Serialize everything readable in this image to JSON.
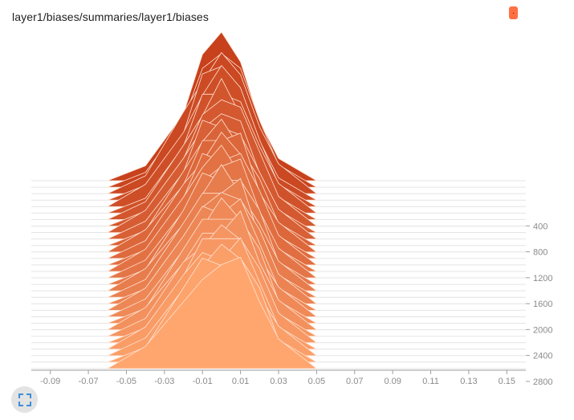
{
  "card": {
    "title": "layer1/biases/summaries/layer1/biases",
    "menu_label": "."
  },
  "colors": {
    "back_fill": "#c6411c",
    "front_fill": "#ffa66f",
    "ridge_line": "#ffe3d3",
    "axis": "#9e9e9e",
    "expand_icon": "#3f8ed8"
  },
  "icons": {
    "expand": "fullscreen-icon"
  },
  "chart_data": {
    "type": "area",
    "title": "layer1/biases/summaries/layer1/biases",
    "xlabel": "",
    "ylabel": "",
    "xlim": [
      -0.1,
      0.16
    ],
    "ylim": [
      3000,
      0
    ],
    "x_ticks": [
      -0.09,
      -0.07,
      -0.05,
      -0.03,
      -0.01,
      0.01,
      0.03,
      0.05,
      0.07,
      0.09,
      0.11,
      0.13,
      0.15
    ],
    "x_tick_labels": [
      "-0.09",
      "-0.07",
      "-0.05",
      "-0.03",
      "-0.01",
      "0.01",
      "0.03",
      "0.05",
      "0.07",
      "0.09",
      "0.11",
      "0.13",
      "0.15"
    ],
    "y_ticks": [
      400,
      800,
      1200,
      1600,
      2000,
      2400,
      2800
    ],
    "y_tick_labels": [
      "400",
      "800",
      "1200",
      "1600",
      "2000",
      "2400",
      "2800"
    ],
    "step_axis": "y",
    "grid": false,
    "legend": "none",
    "series": [
      {
        "step": 0,
        "x": [
          -0.06,
          -0.04,
          -0.02,
          -0.01,
          0.0,
          0.01,
          0.02,
          0.03,
          0.05
        ],
        "y": [
          0.0,
          0.1,
          0.45,
          0.85,
          1.0,
          0.8,
          0.4,
          0.15,
          0.0
        ]
      },
      {
        "step": 100,
        "x": [
          -0.06,
          -0.04,
          -0.02,
          -0.01,
          0.0,
          0.01,
          0.02,
          0.03,
          0.05
        ],
        "y": [
          0.0,
          0.1,
          0.45,
          0.8,
          0.9,
          0.8,
          0.45,
          0.15,
          0.0
        ]
      },
      {
        "step": 200,
        "x": [
          -0.06,
          -0.04,
          -0.02,
          -0.01,
          0.0,
          0.01,
          0.02,
          0.03,
          0.05
        ],
        "y": [
          0.0,
          0.12,
          0.55,
          0.75,
          0.95,
          0.8,
          0.45,
          0.2,
          0.0
        ]
      },
      {
        "step": 300,
        "x": [
          -0.06,
          -0.04,
          -0.02,
          -0.01,
          0.0,
          0.01,
          0.02,
          0.03,
          0.05
        ],
        "y": [
          0.0,
          0.1,
          0.45,
          0.85,
          0.9,
          0.65,
          0.4,
          0.15,
          0.0
        ]
      },
      {
        "step": 400,
        "x": [
          -0.06,
          -0.04,
          -0.02,
          -0.01,
          0.0,
          0.01,
          0.02,
          0.03,
          0.05
        ],
        "y": [
          0.0,
          0.15,
          0.5,
          0.75,
          0.95,
          0.8,
          0.45,
          0.15,
          0.0
        ]
      },
      {
        "step": 500,
        "x": [
          -0.06,
          -0.04,
          -0.02,
          -0.01,
          0.0,
          0.01,
          0.02,
          0.03,
          0.05
        ],
        "y": [
          0.0,
          0.1,
          0.45,
          0.8,
          0.8,
          0.75,
          0.45,
          0.2,
          0.0
        ]
      },
      {
        "step": 600,
        "x": [
          -0.06,
          -0.04,
          -0.02,
          -0.01,
          0.0,
          0.01,
          0.02,
          0.03,
          0.05
        ],
        "y": [
          0.0,
          0.12,
          0.5,
          0.7,
          0.95,
          0.7,
          0.4,
          0.15,
          0.0
        ]
      },
      {
        "step": 700,
        "x": [
          -0.06,
          -0.04,
          -0.02,
          -0.01,
          0.0,
          0.01,
          0.02,
          0.03,
          0.05
        ],
        "y": [
          0.0,
          0.1,
          0.45,
          0.75,
          0.85,
          0.8,
          0.5,
          0.2,
          0.0
        ]
      },
      {
        "step": 800,
        "x": [
          -0.06,
          -0.04,
          -0.02,
          -0.01,
          0.0,
          0.01,
          0.02,
          0.03,
          0.05
        ],
        "y": [
          0.0,
          0.15,
          0.5,
          0.7,
          0.8,
          0.75,
          0.4,
          0.15,
          0.0
        ]
      },
      {
        "step": 900,
        "x": [
          -0.06,
          -0.04,
          -0.02,
          -0.01,
          0.0,
          0.01,
          0.02,
          0.03,
          0.05
        ],
        "y": [
          0.0,
          0.12,
          0.45,
          0.8,
          0.75,
          0.7,
          0.45,
          0.2,
          0.0
        ]
      },
      {
        "step": 1000,
        "x": [
          -0.06,
          -0.04,
          -0.02,
          -0.01,
          0.0,
          0.01,
          0.02,
          0.03,
          0.05
        ],
        "y": [
          0.0,
          0.1,
          0.5,
          0.7,
          0.85,
          0.65,
          0.45,
          0.15,
          0.0
        ]
      },
      {
        "step": 1100,
        "x": [
          -0.06,
          -0.04,
          -0.02,
          -0.01,
          0.0,
          0.01,
          0.02,
          0.03,
          0.05
        ],
        "y": [
          0.0,
          0.15,
          0.45,
          0.75,
          0.75,
          0.8,
          0.4,
          0.2,
          0.0
        ]
      },
      {
        "step": 1200,
        "x": [
          -0.06,
          -0.04,
          -0.02,
          -0.01,
          0.0,
          0.01,
          0.02,
          0.03,
          0.05
        ],
        "y": [
          0.0,
          0.12,
          0.5,
          0.65,
          0.85,
          0.7,
          0.45,
          0.15,
          0.0
        ]
      },
      {
        "step": 1300,
        "x": [
          -0.06,
          -0.04,
          -0.02,
          -0.01,
          0.0,
          0.01,
          0.02,
          0.03,
          0.05
        ],
        "y": [
          0.0,
          0.1,
          0.45,
          0.75,
          0.7,
          0.75,
          0.5,
          0.2,
          0.0
        ]
      },
      {
        "step": 1400,
        "x": [
          -0.06,
          -0.04,
          -0.02,
          -0.01,
          0.0,
          0.01,
          0.02,
          0.03,
          0.05
        ],
        "y": [
          0.0,
          0.15,
          0.5,
          0.7,
          0.85,
          0.65,
          0.4,
          0.15,
          0.0
        ]
      },
      {
        "step": 1500,
        "x": [
          -0.06,
          -0.04,
          -0.02,
          -0.01,
          0.0,
          0.01,
          0.02,
          0.03,
          0.05
        ],
        "y": [
          0.0,
          0.12,
          0.45,
          0.65,
          0.75,
          0.8,
          0.45,
          0.2,
          0.0
        ]
      },
      {
        "step": 1600,
        "x": [
          -0.06,
          -0.04,
          -0.02,
          -0.01,
          0.0,
          0.01,
          0.02,
          0.03,
          0.05
        ],
        "y": [
          0.0,
          0.1,
          0.5,
          0.75,
          0.7,
          0.7,
          0.5,
          0.15,
          0.0
        ]
      },
      {
        "step": 1700,
        "x": [
          -0.06,
          -0.04,
          -0.02,
          -0.01,
          0.0,
          0.01,
          0.02,
          0.03,
          0.05
        ],
        "y": [
          0.0,
          0.15,
          0.45,
          0.65,
          0.85,
          0.65,
          0.45,
          0.2,
          0.0
        ]
      },
      {
        "step": 1800,
        "x": [
          -0.06,
          -0.04,
          -0.02,
          -0.01,
          0.0,
          0.01,
          0.02,
          0.03,
          0.05
        ],
        "y": [
          0.0,
          0.12,
          0.5,
          0.7,
          0.7,
          0.8,
          0.4,
          0.15,
          0.0
        ]
      },
      {
        "step": 1900,
        "x": [
          -0.06,
          -0.04,
          -0.02,
          -0.01,
          0.0,
          0.01,
          0.02,
          0.03,
          0.05
        ],
        "y": [
          0.0,
          0.1,
          0.45,
          0.65,
          0.75,
          0.7,
          0.5,
          0.2,
          0.0
        ]
      },
      {
        "step": 2000,
        "x": [
          -0.06,
          -0.04,
          -0.02,
          -0.01,
          0.0,
          0.01,
          0.02,
          0.03,
          0.05
        ],
        "y": [
          0.0,
          0.15,
          0.5,
          0.7,
          0.65,
          0.75,
          0.45,
          0.15,
          0.0
        ]
      },
      {
        "step": 2100,
        "x": [
          -0.06,
          -0.04,
          -0.02,
          -0.01,
          0.0,
          0.01,
          0.02,
          0.03,
          0.05
        ],
        "y": [
          0.0,
          0.12,
          0.45,
          0.6,
          0.8,
          0.65,
          0.4,
          0.2,
          0.0
        ]
      },
      {
        "step": 2200,
        "x": [
          -0.06,
          -0.04,
          -0.02,
          -0.01,
          0.0,
          0.01,
          0.02,
          0.03,
          0.05
        ],
        "y": [
          0.0,
          0.1,
          0.5,
          0.7,
          0.7,
          0.7,
          0.5,
          0.15,
          0.0
        ]
      },
      {
        "step": 2300,
        "x": [
          -0.06,
          -0.04,
          -0.02,
          -0.01,
          0.0,
          0.01,
          0.02,
          0.03,
          0.05
        ],
        "y": [
          0.0,
          0.15,
          0.45,
          0.65,
          0.65,
          0.8,
          0.45,
          0.2,
          0.0
        ]
      },
      {
        "step": 2400,
        "x": [
          -0.06,
          -0.04,
          -0.02,
          -0.01,
          0.0,
          0.01,
          0.02,
          0.03,
          0.05
        ],
        "y": [
          0.0,
          0.12,
          0.5,
          0.6,
          0.75,
          0.65,
          0.4,
          0.15,
          0.0
        ]
      },
      {
        "step": 2500,
        "x": [
          -0.06,
          -0.04,
          -0.02,
          -0.01,
          0.0,
          0.01,
          0.02,
          0.03,
          0.05
        ],
        "y": [
          0.0,
          0.1,
          0.45,
          0.7,
          0.7,
          0.7,
          0.5,
          0.2,
          0.0
        ]
      },
      {
        "step": 2600,
        "x": [
          -0.06,
          -0.04,
          -0.02,
          -0.01,
          0.0,
          0.01,
          0.02,
          0.03,
          0.05
        ],
        "y": [
          0.0,
          0.15,
          0.5,
          0.65,
          0.6,
          0.75,
          0.45,
          0.15,
          0.0
        ]
      },
      {
        "step": 2700,
        "x": [
          -0.06,
          -0.04,
          -0.02,
          -0.01,
          0.0,
          0.01,
          0.02,
          0.03,
          0.05
        ],
        "y": [
          0.0,
          0.12,
          0.45,
          0.6,
          0.75,
          0.65,
          0.4,
          0.2,
          0.0
        ]
      },
      {
        "step": 2800,
        "x": [
          -0.06,
          -0.04,
          -0.02,
          -0.01,
          0.0,
          0.01,
          0.02,
          0.03,
          0.05
        ],
        "y": [
          0.0,
          0.1,
          0.5,
          0.7,
          0.65,
          0.7,
          0.5,
          0.15,
          0.0
        ]
      },
      {
        "step": 2900,
        "x": [
          -0.06,
          -0.04,
          -0.02,
          -0.01,
          0.0,
          0.01,
          0.02,
          0.03,
          0.05
        ],
        "y": [
          0.0,
          0.15,
          0.45,
          0.6,
          0.7,
          0.75,
          0.45,
          0.2,
          0.0
        ]
      }
    ]
  }
}
